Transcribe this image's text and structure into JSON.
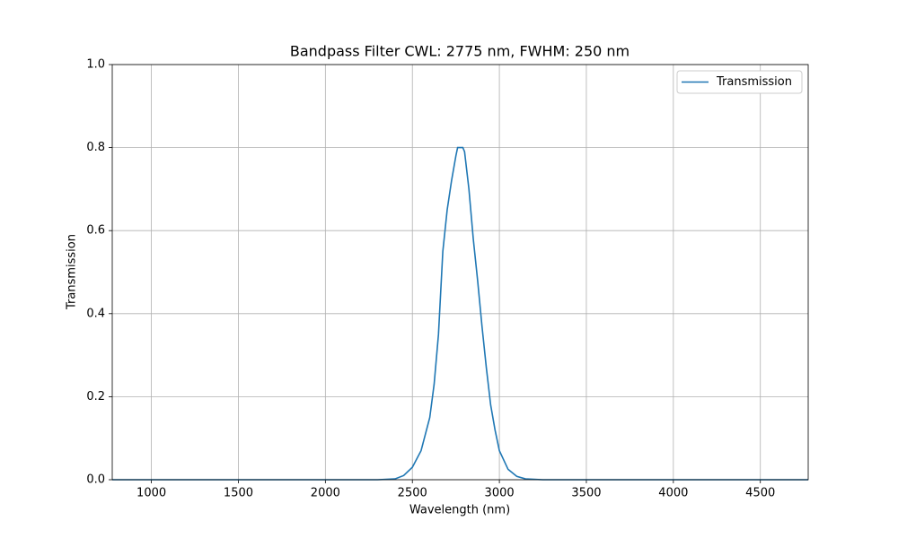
{
  "chart_data": {
    "type": "line",
    "title": "Bandpass Filter CWL: 2775 nm, FWHM: 250 nm",
    "x_label": "Wavelength (nm)",
    "y_label": "Transmission",
    "x": [
      775,
      2300,
      2400,
      2450,
      2500,
      2550,
      2600,
      2625,
      2650,
      2675,
      2700,
      2725,
      2750,
      2760,
      2790,
      2800,
      2825,
      2850,
      2875,
      2900,
      2925,
      2950,
      2975,
      3000,
      3050,
      3100,
      3150,
      3250,
      4775
    ],
    "series": [
      {
        "name": "Transmission",
        "color": "#1f77b4",
        "values": [
          0,
          0,
          0.002,
          0.01,
          0.03,
          0.07,
          0.15,
          0.23,
          0.35,
          0.55,
          0.65,
          0.72,
          0.78,
          0.8,
          0.8,
          0.79,
          0.7,
          0.58,
          0.48,
          0.37,
          0.27,
          0.18,
          0.12,
          0.07,
          0.025,
          0.008,
          0.002,
          0,
          0
        ]
      }
    ],
    "xlim": [
      775,
      4775
    ],
    "ylim": [
      0,
      1
    ],
    "xticks": [
      1000,
      1500,
      2000,
      2500,
      3000,
      3500,
      4000,
      4500
    ],
    "yticks": [
      {
        "value": 0,
        "label": "0.0"
      },
      {
        "value": 0.2,
        "label": "0.2"
      },
      {
        "value": 0.4,
        "label": "0.4"
      },
      {
        "value": 0.6,
        "label": "0.6"
      },
      {
        "value": 0.8,
        "label": "0.8"
      },
      {
        "value": 1,
        "label": "1.0"
      }
    ],
    "grid": true,
    "legend": "upper right"
  }
}
